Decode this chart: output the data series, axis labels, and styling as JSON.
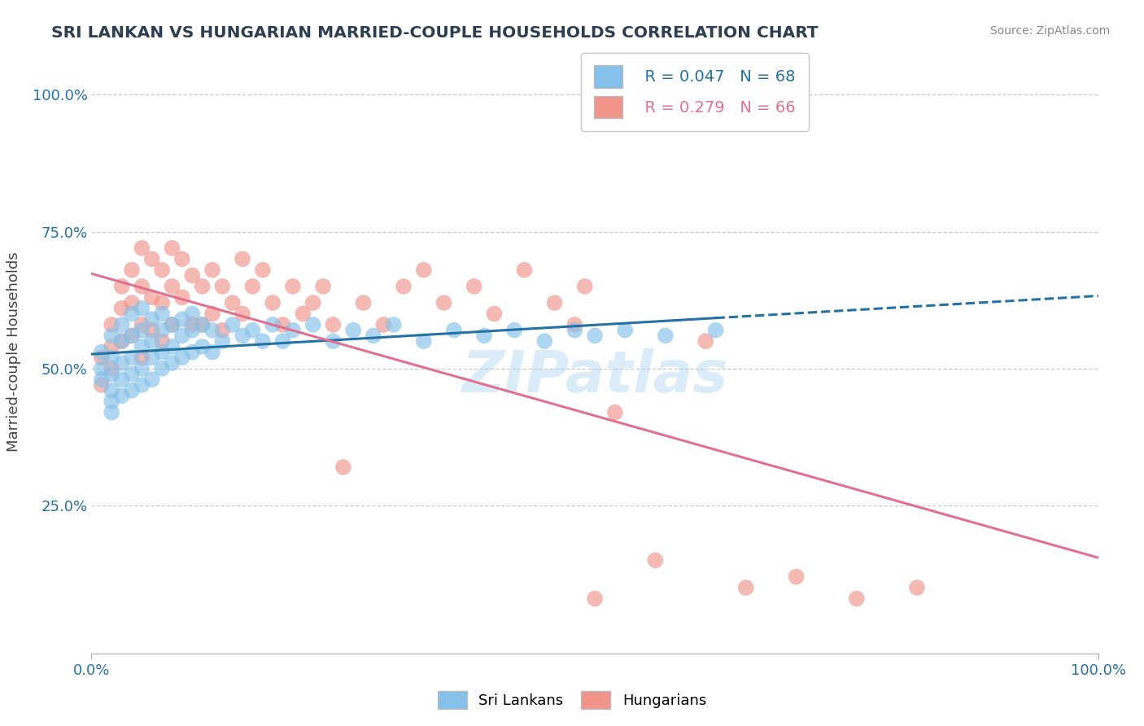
{
  "title": "SRI LANKAN VS HUNGARIAN MARRIED-COUPLE HOUSEHOLDS CORRELATION CHART",
  "source": "Source: ZipAtlas.com",
  "ylabel": "Married-couple Households",
  "xlim": [
    0.0,
    1.0
  ],
  "ylim_plot": [
    -0.02,
    1.08
  ],
  "xtick_vals": [
    0.0,
    1.0
  ],
  "xticklabels": [
    "0.0%",
    "100.0%"
  ],
  "ytick_vals": [
    0.25,
    0.5,
    0.75,
    1.0
  ],
  "yticklabels": [
    "25.0%",
    "50.0%",
    "75.0%",
    "100.0%"
  ],
  "legend_r_blue": "R = 0.047",
  "legend_n_blue": "N = 68",
  "legend_r_pink": "R = 0.279",
  "legend_n_pink": "N = 66",
  "blue_scatter_color": "#85C1E9",
  "pink_scatter_color": "#F1948A",
  "blue_line_color": "#2471A3",
  "pink_line_color": "#E07090",
  "axis_label_color": "#2471A3",
  "title_color": "#2C3E50",
  "grid_color": "#CCCCCC",
  "watermark_text": "ZIPatlas",
  "watermark_color": "#AED6F1",
  "source_text": "Source: ZipAtlas.com",
  "sl_x": [
    0.01,
    0.01,
    0.01,
    0.02,
    0.02,
    0.02,
    0.02,
    0.02,
    0.02,
    0.03,
    0.03,
    0.03,
    0.03,
    0.03,
    0.04,
    0.04,
    0.04,
    0.04,
    0.04,
    0.05,
    0.05,
    0.05,
    0.05,
    0.05,
    0.06,
    0.06,
    0.06,
    0.06,
    0.07,
    0.07,
    0.07,
    0.07,
    0.08,
    0.08,
    0.08,
    0.09,
    0.09,
    0.09,
    0.1,
    0.1,
    0.1,
    0.11,
    0.11,
    0.12,
    0.12,
    0.13,
    0.14,
    0.15,
    0.16,
    0.17,
    0.18,
    0.19,
    0.2,
    0.22,
    0.24,
    0.26,
    0.28,
    0.3,
    0.33,
    0.36,
    0.39,
    0.42,
    0.45,
    0.48,
    0.5,
    0.53,
    0.57,
    0.62
  ],
  "sl_y": [
    0.53,
    0.5,
    0.48,
    0.56,
    0.52,
    0.49,
    0.46,
    0.44,
    0.42,
    0.58,
    0.55,
    0.51,
    0.48,
    0.45,
    0.6,
    0.56,
    0.52,
    0.49,
    0.46,
    0.61,
    0.57,
    0.54,
    0.5,
    0.47,
    0.59,
    0.55,
    0.52,
    0.48,
    0.6,
    0.57,
    0.53,
    0.5,
    0.58,
    0.54,
    0.51,
    0.59,
    0.56,
    0.52,
    0.6,
    0.57,
    0.53,
    0.58,
    0.54,
    0.57,
    0.53,
    0.55,
    0.58,
    0.56,
    0.57,
    0.55,
    0.58,
    0.55,
    0.57,
    0.58,
    0.55,
    0.57,
    0.56,
    0.58,
    0.55,
    0.57,
    0.56,
    0.57,
    0.55,
    0.57,
    0.56,
    0.57,
    0.56,
    0.57
  ],
  "hun_x": [
    0.01,
    0.01,
    0.02,
    0.02,
    0.02,
    0.03,
    0.03,
    0.03,
    0.04,
    0.04,
    0.04,
    0.05,
    0.05,
    0.05,
    0.05,
    0.06,
    0.06,
    0.06,
    0.07,
    0.07,
    0.07,
    0.08,
    0.08,
    0.08,
    0.09,
    0.09,
    0.1,
    0.1,
    0.11,
    0.11,
    0.12,
    0.12,
    0.13,
    0.13,
    0.14,
    0.15,
    0.15,
    0.16,
    0.17,
    0.18,
    0.19,
    0.2,
    0.21,
    0.22,
    0.23,
    0.24,
    0.25,
    0.27,
    0.29,
    0.31,
    0.33,
    0.35,
    0.38,
    0.4,
    0.43,
    0.46,
    0.48,
    0.49,
    0.5,
    0.52,
    0.56,
    0.61,
    0.65,
    0.7,
    0.76,
    0.82
  ],
  "hun_y": [
    0.52,
    0.47,
    0.58,
    0.54,
    0.5,
    0.65,
    0.61,
    0.55,
    0.68,
    0.62,
    0.56,
    0.72,
    0.65,
    0.58,
    0.52,
    0.7,
    0.63,
    0.57,
    0.68,
    0.62,
    0.55,
    0.72,
    0.65,
    0.58,
    0.7,
    0.63,
    0.67,
    0.58,
    0.65,
    0.58,
    0.68,
    0.6,
    0.65,
    0.57,
    0.62,
    0.7,
    0.6,
    0.65,
    0.68,
    0.62,
    0.58,
    0.65,
    0.6,
    0.62,
    0.65,
    0.58,
    0.32,
    0.62,
    0.58,
    0.65,
    0.68,
    0.62,
    0.65,
    0.6,
    0.68,
    0.62,
    0.58,
    0.65,
    0.08,
    0.42,
    0.15,
    0.55,
    0.1,
    0.12,
    0.08,
    0.1
  ]
}
